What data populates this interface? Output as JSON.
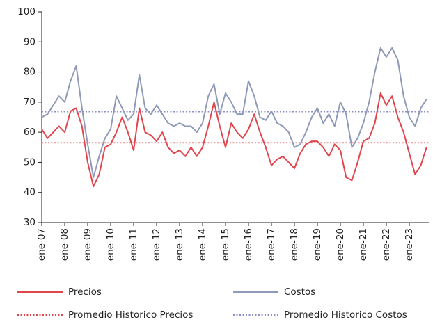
{
  "chart_data": {
    "type": "line",
    "categories": [
      "ene-07",
      null,
      null,
      null,
      "ene-08",
      null,
      null,
      null,
      "ene-09",
      null,
      null,
      null,
      "ene-10",
      null,
      null,
      null,
      "ene-11",
      null,
      null,
      null,
      "ene-12",
      null,
      null,
      null,
      "ene-13",
      null,
      null,
      null,
      "ene-14",
      null,
      null,
      null,
      "ene-15",
      null,
      null,
      null,
      "ene-16",
      null,
      null,
      null,
      "ene-17",
      null,
      null,
      null,
      "ene-18",
      null,
      null,
      null,
      "ene-19",
      null,
      null,
      null,
      "ene-20",
      null,
      null,
      null,
      "ene-21",
      null,
      null,
      null,
      "ene-22",
      null,
      null,
      null,
      "ene-23",
      null,
      null,
      null
    ],
    "series": [
      {
        "name": "Precios",
        "color": "#e0464c",
        "values": [
          61,
          58,
          60,
          62,
          60,
          67,
          68,
          62,
          50,
          42,
          46,
          55,
          56,
          60,
          65,
          60,
          54,
          68,
          60,
          59,
          57,
          60,
          55,
          53,
          54,
          52,
          55,
          52,
          55,
          62,
          70,
          62,
          55,
          63,
          60,
          58,
          61,
          66,
          60,
          55,
          49,
          51,
          52,
          50,
          48,
          53,
          56,
          57,
          57,
          55,
          52,
          56,
          54,
          45,
          44,
          50,
          57,
          58,
          63,
          73,
          69,
          72,
          65,
          60,
          53,
          46,
          49,
          55
        ]
      },
      {
        "name": "Costos",
        "color": "#8f9ab8",
        "values": [
          65,
          66,
          69,
          72,
          70,
          77,
          82,
          68,
          56,
          45,
          52,
          58,
          61,
          72,
          68,
          64,
          66,
          79,
          68,
          66,
          69,
          66,
          63,
          62,
          63,
          62,
          62,
          60,
          63,
          72,
          76,
          66,
          73,
          70,
          66,
          66,
          77,
          72,
          65,
          64,
          67,
          63,
          62,
          60,
          55,
          56,
          60,
          65,
          68,
          63,
          66,
          62,
          70,
          66,
          55,
          58,
          63,
          70,
          80,
          88,
          85,
          88,
          84,
          72,
          65,
          62,
          68,
          71
        ]
      }
    ],
    "reference_lines": [
      {
        "name": "Promedio Historico Precios",
        "value": 56.5,
        "color": "#e0464c"
      },
      {
        "name": "Promedio Historico Costos",
        "value": 66.8,
        "color": "#8a8fc9"
      }
    ],
    "ylim": [
      30,
      100
    ],
    "yticks": [
      30,
      40,
      50,
      60,
      70,
      80,
      90,
      100
    ]
  }
}
